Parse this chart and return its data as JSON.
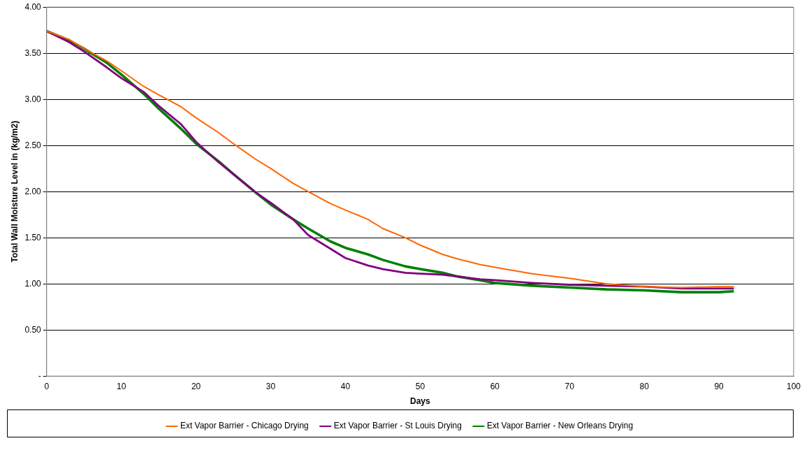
{
  "chart_data": {
    "type": "line",
    "xlabel": "Days",
    "ylabel": "Total Wall Moisture Level in (kg/m2)",
    "xlim": [
      0,
      100
    ],
    "xticks": [
      0,
      10,
      20,
      30,
      40,
      50,
      60,
      70,
      80,
      90,
      100
    ],
    "ylim": [
      0,
      4
    ],
    "yticks": [
      {
        "value": 0,
        "label": "-"
      },
      {
        "value": 0.5,
        "label": "0.50"
      },
      {
        "value": 1,
        "label": "1.00"
      },
      {
        "value": 1.5,
        "label": "1.50"
      },
      {
        "value": 2,
        "label": "2.00"
      },
      {
        "value": 2.5,
        "label": "2.50"
      },
      {
        "value": 3,
        "label": "3.00"
      },
      {
        "value": 3.5,
        "label": "3.50"
      },
      {
        "value": 4,
        "label": "4.00"
      }
    ],
    "grid": "y",
    "legend": "bottom",
    "marker": "none",
    "line_style": "solid",
    "x": [
      0,
      3,
      5,
      8,
      10,
      13,
      15,
      18,
      20,
      23,
      25,
      28,
      30,
      33,
      35,
      38,
      40,
      43,
      45,
      48,
      50,
      53,
      55,
      58,
      60,
      65,
      70,
      75,
      80,
      85,
      90,
      92
    ],
    "series": [
      {
        "name": "Ext Vapor Barrier - Chicago Drying",
        "color": "#ff6600",
        "values": [
          3.74,
          3.65,
          3.55,
          3.42,
          3.31,
          3.14,
          3.05,
          2.92,
          2.8,
          2.64,
          2.52,
          2.35,
          2.25,
          2.09,
          2.0,
          1.87,
          1.8,
          1.7,
          1.6,
          1.5,
          1.42,
          1.32,
          1.27,
          1.21,
          1.18,
          1.11,
          1.06,
          1.0,
          0.97,
          0.96,
          0.97,
          0.97
        ]
      },
      {
        "name": "Ext Vapor Barrier - St Louis Drying",
        "color": "#800080",
        "values": [
          3.74,
          3.62,
          3.52,
          3.35,
          3.23,
          3.08,
          2.93,
          2.73,
          2.54,
          2.32,
          2.19,
          1.99,
          1.88,
          1.7,
          1.53,
          1.38,
          1.28,
          1.2,
          1.16,
          1.12,
          1.11,
          1.1,
          1.08,
          1.05,
          1.04,
          1.01,
          0.99,
          0.98,
          0.97,
          0.95,
          0.95,
          0.95
        ]
      },
      {
        "name": "Ext Vapor Barrier - New Orleans Drying",
        "color": "#008000",
        "values": [
          3.74,
          3.64,
          3.55,
          3.4,
          3.27,
          3.06,
          2.9,
          2.68,
          2.52,
          2.33,
          2.19,
          1.99,
          1.86,
          1.7,
          1.6,
          1.46,
          1.39,
          1.32,
          1.26,
          1.19,
          1.16,
          1.12,
          1.08,
          1.04,
          1.01,
          0.98,
          0.96,
          0.94,
          0.93,
          0.91,
          0.91,
          0.92
        ]
      }
    ]
  }
}
